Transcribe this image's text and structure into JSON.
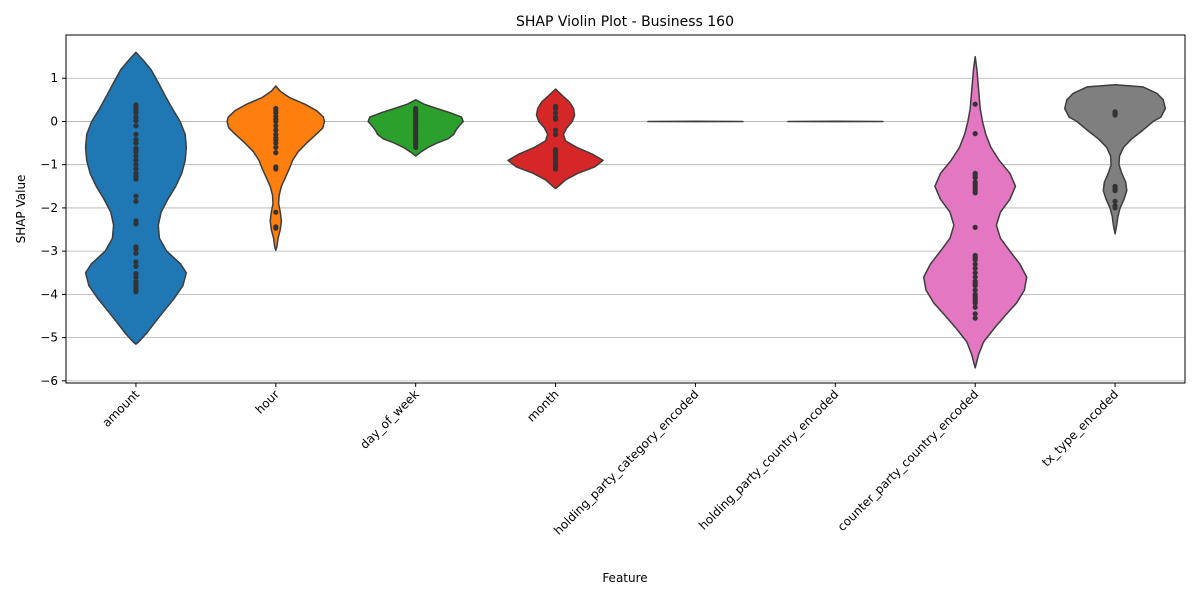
{
  "chart_data": {
    "type": "violin",
    "title": "SHAP Violin Plot - Business 160",
    "xlabel": "Feature",
    "ylabel": "SHAP Value",
    "ylim": [
      -6.05,
      2.0
    ],
    "yticks": [
      1,
      0,
      -1,
      -2,
      -3,
      -4,
      -5,
      -6
    ],
    "grid": "y",
    "categories": [
      "amount",
      "hour",
      "day_of_week",
      "month",
      "holding_party_category_encoded",
      "holding_party_country_encoded",
      "counter_party_country_encoded",
      "tx_type_encoded"
    ],
    "colors": [
      "#1f77b4",
      "#ff7f0e",
      "#2ca02c",
      "#d62728",
      "#9467bd",
      "#8c564b",
      "#e377c2",
      "#7f7f7f"
    ],
    "violins": [
      {
        "profile": [
          [
            1.6,
            0.0
          ],
          [
            1.4,
            0.14
          ],
          [
            1.2,
            0.27
          ],
          [
            0.9,
            0.4
          ],
          [
            0.6,
            0.52
          ],
          [
            0.3,
            0.65
          ],
          [
            0.0,
            0.79
          ],
          [
            -0.3,
            0.88
          ],
          [
            -0.6,
            0.9
          ],
          [
            -0.9,
            0.88
          ],
          [
            -1.2,
            0.82
          ],
          [
            -1.5,
            0.71
          ],
          [
            -1.8,
            0.57
          ],
          [
            -2.1,
            0.45
          ],
          [
            -2.4,
            0.4
          ],
          [
            -2.7,
            0.42
          ],
          [
            -3.0,
            0.55
          ],
          [
            -3.3,
            0.8
          ],
          [
            -3.5,
            0.9
          ],
          [
            -3.8,
            0.84
          ],
          [
            -4.1,
            0.68
          ],
          [
            -4.4,
            0.49
          ],
          [
            -4.7,
            0.31
          ],
          [
            -4.9,
            0.19
          ],
          [
            -5.1,
            0.05
          ],
          [
            -5.15,
            0.0
          ]
        ],
        "points": [
          0.38,
          0.33,
          0.28,
          0.25,
          0.2,
          0.1,
          0.02,
          -0.1,
          -0.3,
          -0.42,
          -0.5,
          -0.62,
          -0.7,
          -0.8,
          -0.9,
          -1.0,
          -1.1,
          -1.2,
          -1.27,
          -1.33,
          -1.73,
          -1.85,
          -2.3,
          -2.37,
          -2.9,
          -2.95,
          -3.05,
          -3.25,
          -3.35,
          -3.52,
          -3.6,
          -3.7,
          -3.75,
          -3.8,
          -3.85,
          -3.9,
          -3.94
        ]
      },
      {
        "profile": [
          [
            0.82,
            0.0
          ],
          [
            0.7,
            0.08
          ],
          [
            0.55,
            0.25
          ],
          [
            0.4,
            0.52
          ],
          [
            0.25,
            0.73
          ],
          [
            0.1,
            0.85
          ],
          [
            0.0,
            0.87
          ],
          [
            -0.15,
            0.84
          ],
          [
            -0.3,
            0.72
          ],
          [
            -0.5,
            0.55
          ],
          [
            -0.7,
            0.4
          ],
          [
            -0.9,
            0.3
          ],
          [
            -1.1,
            0.24
          ],
          [
            -1.3,
            0.17
          ],
          [
            -1.5,
            0.1
          ],
          [
            -1.7,
            0.06
          ],
          [
            -1.9,
            0.05
          ],
          [
            -2.1,
            0.08
          ],
          [
            -2.3,
            0.1
          ],
          [
            -2.5,
            0.08
          ],
          [
            -2.7,
            0.04
          ],
          [
            -2.9,
            0.02
          ],
          [
            -2.98,
            0.0
          ]
        ],
        "points": [
          0.3,
          0.25,
          0.2,
          0.12,
          0.05,
          0.0,
          -0.1,
          -0.2,
          -0.3,
          -0.38,
          -0.43,
          -0.5,
          -0.6,
          -0.72,
          -1.05,
          -1.1,
          -2.1,
          -2.44,
          -2.47
        ]
      },
      {
        "profile": [
          [
            0.5,
            0.0
          ],
          [
            0.4,
            0.15
          ],
          [
            0.3,
            0.38
          ],
          [
            0.2,
            0.62
          ],
          [
            0.1,
            0.82
          ],
          [
            0.0,
            0.85
          ],
          [
            -0.1,
            0.78
          ],
          [
            -0.2,
            0.72
          ],
          [
            -0.3,
            0.68
          ],
          [
            -0.4,
            0.58
          ],
          [
            -0.5,
            0.38
          ],
          [
            -0.6,
            0.22
          ],
          [
            -0.7,
            0.1
          ],
          [
            -0.8,
            0.0
          ]
        ],
        "points": [
          0.3,
          0.25,
          0.2,
          0.15,
          0.1,
          0.05,
          0.0,
          -0.05,
          -0.1,
          -0.15,
          -0.2,
          -0.25,
          -0.3,
          -0.35,
          -0.4,
          -0.45,
          -0.5,
          -0.55,
          -0.6
        ]
      },
      {
        "profile": [
          [
            0.75,
            0.0
          ],
          [
            0.6,
            0.12
          ],
          [
            0.45,
            0.25
          ],
          [
            0.3,
            0.32
          ],
          [
            0.15,
            0.34
          ],
          [
            0.0,
            0.3
          ],
          [
            -0.15,
            0.2
          ],
          [
            -0.3,
            0.14
          ],
          [
            -0.45,
            0.18
          ],
          [
            -0.6,
            0.38
          ],
          [
            -0.75,
            0.65
          ],
          [
            -0.9,
            0.85
          ],
          [
            -1.05,
            0.7
          ],
          [
            -1.2,
            0.4
          ],
          [
            -1.35,
            0.18
          ],
          [
            -1.5,
            0.05
          ],
          [
            -1.55,
            0.0
          ]
        ],
        "points": [
          0.35,
          0.3,
          0.2,
          0.1,
          0.05,
          -0.2,
          -0.3,
          -0.65,
          -0.7,
          -0.75,
          -0.82,
          -0.88,
          -0.95,
          -1.0,
          -1.05,
          -1.1
        ]
      },
      {
        "profile": [
          [
            0.003,
            0.0
          ],
          [
            0.0,
            0.85
          ],
          [
            -0.003,
            0.0
          ]
        ],
        "points": []
      },
      {
        "profile": [
          [
            0.003,
            0.0
          ],
          [
            0.0,
            0.85
          ],
          [
            -0.003,
            0.0
          ]
        ],
        "points": []
      },
      {
        "profile": [
          [
            1.5,
            0.0
          ],
          [
            1.2,
            0.03
          ],
          [
            0.9,
            0.05
          ],
          [
            0.6,
            0.07
          ],
          [
            0.3,
            0.09
          ],
          [
            0.0,
            0.13
          ],
          [
            -0.3,
            0.19
          ],
          [
            -0.6,
            0.28
          ],
          [
            -0.9,
            0.43
          ],
          [
            -1.2,
            0.62
          ],
          [
            -1.5,
            0.72
          ],
          [
            -1.8,
            0.62
          ],
          [
            -2.1,
            0.45
          ],
          [
            -2.4,
            0.38
          ],
          [
            -2.7,
            0.45
          ],
          [
            -3.0,
            0.62
          ],
          [
            -3.3,
            0.8
          ],
          [
            -3.6,
            0.92
          ],
          [
            -3.9,
            0.88
          ],
          [
            -4.2,
            0.74
          ],
          [
            -4.5,
            0.53
          ],
          [
            -4.8,
            0.33
          ],
          [
            -5.1,
            0.15
          ],
          [
            -5.4,
            0.06
          ],
          [
            -5.7,
            0.0
          ]
        ],
        "points": [
          0.4,
          -0.28,
          -1.2,
          -1.25,
          -1.3,
          -1.4,
          -1.45,
          -1.5,
          -1.55,
          -1.6,
          -1.65,
          -2.45,
          -3.1,
          -3.15,
          -3.2,
          -3.3,
          -3.4,
          -3.5,
          -3.6,
          -3.7,
          -3.75,
          -3.8,
          -3.9,
          -4.0,
          -4.05,
          -4.1,
          -4.15,
          -4.2,
          -4.3,
          -4.45,
          -4.55
        ]
      },
      {
        "profile": [
          [
            0.85,
            0.0
          ],
          [
            0.8,
            0.5
          ],
          [
            0.65,
            0.75
          ],
          [
            0.5,
            0.86
          ],
          [
            0.3,
            0.9
          ],
          [
            0.1,
            0.82
          ],
          [
            0.0,
            0.68
          ],
          [
            -0.2,
            0.5
          ],
          [
            -0.4,
            0.3
          ],
          [
            -0.6,
            0.15
          ],
          [
            -0.8,
            0.08
          ],
          [
            -1.0,
            0.07
          ],
          [
            -1.2,
            0.12
          ],
          [
            -1.4,
            0.19
          ],
          [
            -1.6,
            0.21
          ],
          [
            -1.8,
            0.16
          ],
          [
            -2.0,
            0.09
          ],
          [
            -2.2,
            0.05
          ],
          [
            -2.4,
            0.03
          ],
          [
            -2.6,
            0.0
          ]
        ],
        "points": [
          0.22,
          0.2,
          0.18,
          0.15,
          -1.5,
          -1.55,
          -1.6,
          -1.85,
          -1.95,
          -2.0
        ]
      }
    ]
  }
}
